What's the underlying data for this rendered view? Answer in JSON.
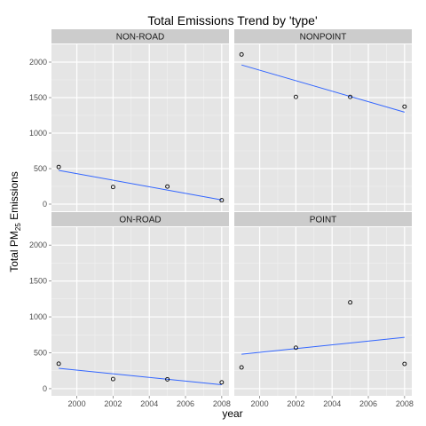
{
  "chart_data": {
    "type": "scatter",
    "title": "Total Emissions Trend by 'type'",
    "xlabel": "year",
    "ylabel": {
      "prefix": "Total PM",
      "subscript": "25",
      "suffix": " Emissions"
    },
    "xlim": [
      1998.6,
      2008.4
    ],
    "ylim": [
      -100,
      2250
    ],
    "x_ticks": [
      2000,
      2002,
      2004,
      2006,
      2008
    ],
    "y_ticks": [
      0,
      500,
      1000,
      1500,
      2000
    ],
    "grid": true,
    "facets": [
      {
        "name": "NON-ROAD",
        "points": [
          [
            1999,
            523
          ],
          [
            2002,
            241
          ],
          [
            2005,
            248
          ],
          [
            2008,
            55
          ]
        ],
        "fit": [
          [
            1999,
            475
          ],
          [
            2008,
            60
          ]
        ]
      },
      {
        "name": "NONPOINT",
        "points": [
          [
            1999,
            2108
          ],
          [
            2002,
            1510
          ],
          [
            2005,
            1510
          ],
          [
            2008,
            1373
          ]
        ],
        "fit": [
          [
            1999,
            1960
          ],
          [
            2008,
            1295
          ]
        ]
      },
      {
        "name": "ON-ROAD",
        "points": [
          [
            1999,
            347
          ],
          [
            2002,
            134
          ],
          [
            2005,
            130
          ],
          [
            2008,
            88
          ]
        ],
        "fit": [
          [
            1999,
            283
          ],
          [
            2008,
            55
          ]
        ]
      },
      {
        "name": "POINT",
        "points": [
          [
            1999,
            296
          ],
          [
            2002,
            570
          ],
          [
            2005,
            1202
          ],
          [
            2008,
            345
          ]
        ],
        "fit": [
          [
            1999,
            480
          ],
          [
            2008,
            715
          ]
        ]
      }
    ],
    "colors": {
      "panel": "#e5e5e5",
      "strip": "#cccccc",
      "grid": "#f2f2f2",
      "fit": "#3366ff",
      "point": "#000000"
    }
  }
}
